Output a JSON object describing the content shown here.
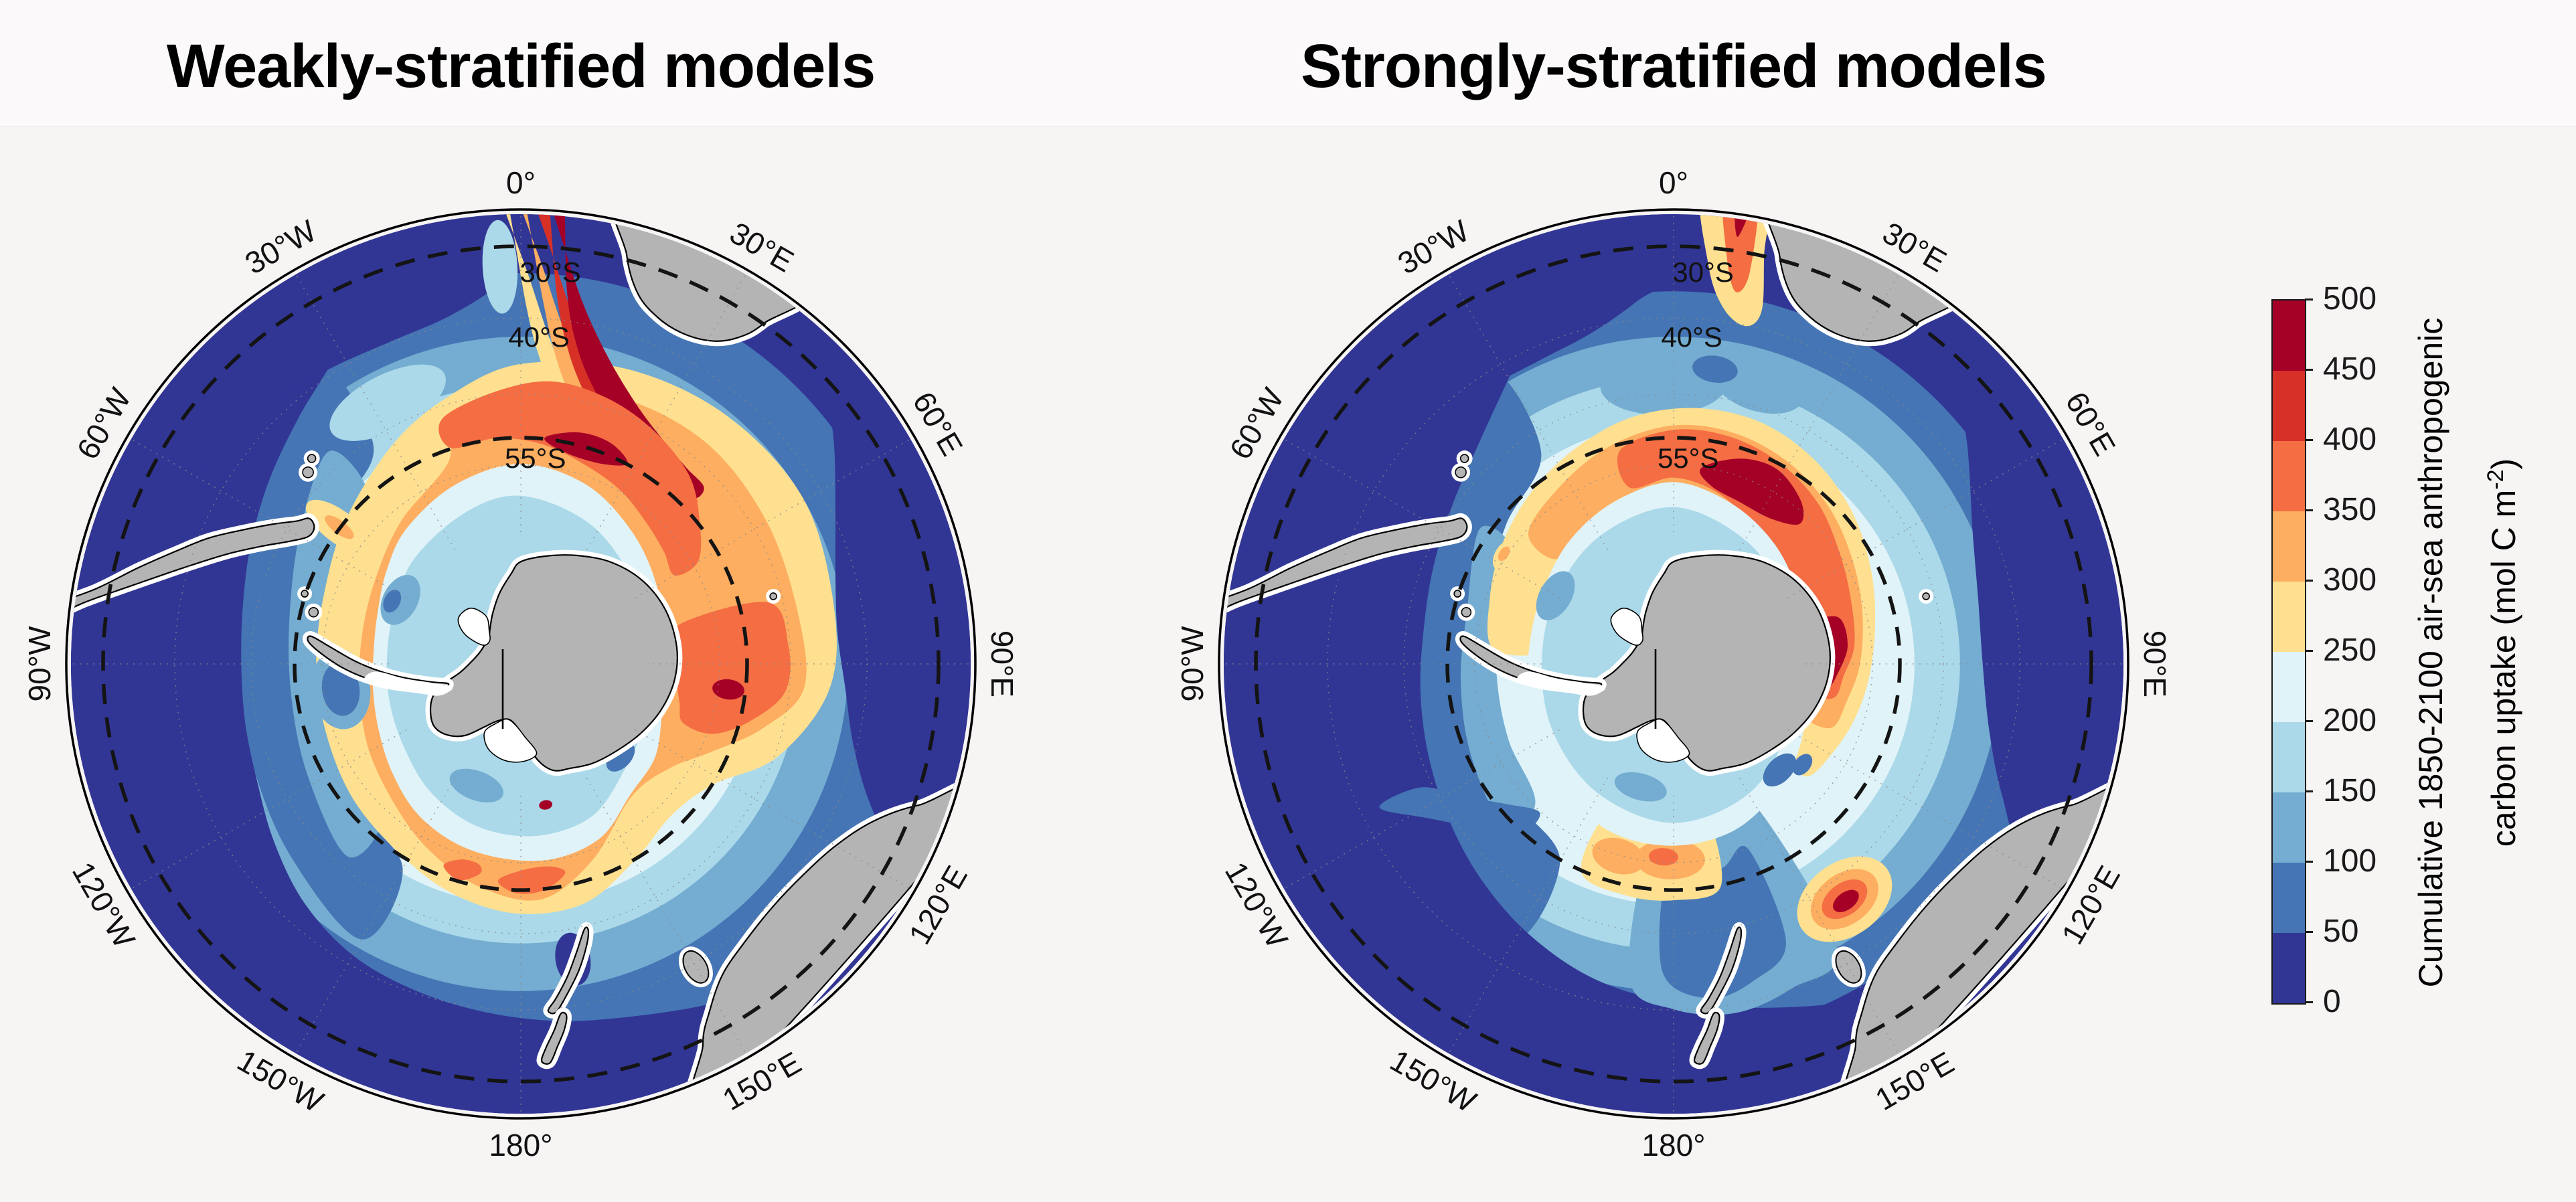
{
  "figure": {
    "background": "#f7f4f4",
    "panels": [
      {
        "title": "Weakly-stratified models"
      },
      {
        "title": "Strongly-stratified models"
      }
    ]
  },
  "map": {
    "longitude_labels": [
      {
        "text": "0°",
        "deg": 0
      },
      {
        "text": "30°E",
        "deg": 30
      },
      {
        "text": "60°E",
        "deg": 60
      },
      {
        "text": "90°E",
        "deg": 90
      },
      {
        "text": "120°E",
        "deg": 120
      },
      {
        "text": "150°E",
        "deg": 150
      },
      {
        "text": "180°",
        "deg": 180
      },
      {
        "text": "150°W",
        "deg": 210
      },
      {
        "text": "120°W",
        "deg": 240
      },
      {
        "text": "90°W",
        "deg": 270
      },
      {
        "text": "60°W",
        "deg": 300
      },
      {
        "text": "30°W",
        "deg": 330
      }
    ],
    "latitude_labels": [
      {
        "text": "30°S",
        "dx_r": 0.065,
        "dy_r": -0.862
      },
      {
        "text": "40°S",
        "dx_r": 0.04,
        "dy_r": -0.718
      },
      {
        "text": "55°S",
        "dx_r": 0.032,
        "dy_r": -0.452
      }
    ]
  },
  "colorbar": {
    "ticks_top_to_bottom": [
      "500",
      "450",
      "400",
      "350",
      "300",
      "250",
      "200",
      "150",
      "100",
      "50",
      "0"
    ],
    "label_line1": "Cumulative 1850-2100 air-sea anthropogenic",
    "label_line2_prefix": "carbon uptake (mol C m",
    "label_line2_sup": "-2",
    "label_line2_suffix": ")"
  },
  "chart_data": {
    "type": "heatmap",
    "title": "Cumulative 1850-2100 air-sea anthropogenic carbon uptake (mol C m-2)",
    "projection": "South polar stereographic view of the Southern Ocean (Antarctica centered, edge ~27-30°S)",
    "units": "mol C m-2",
    "levels": [
      0,
      50,
      100,
      150,
      200,
      250,
      300,
      350,
      400,
      450,
      500
    ],
    "palette": [
      "#313695",
      "#4575b4",
      "#74add1",
      "#abd9e9",
      "#e0f3f8",
      "#fee090",
      "#fdae61",
      "#f46d43",
      "#d73027",
      "#a50026"
    ],
    "land_color": "#b4b4b4",
    "gridlines": {
      "bold_dashed_parallels": [
        "30°S",
        "55°S"
      ],
      "dotted_parallel": "40°S",
      "meridian_spacing_deg": 30
    },
    "panels": [
      {
        "title": "Weakly-stratified models",
        "summary": "Broad band of high cumulative uptake (300-500 mol C m-2) spanning roughly 40-60°S across the Atlantic and Indian sectors; very low uptake (0-50) equatorward of ~35°S, especially in the SE Pacific and at 60-110°E near 30°S; moderate values (150-250) adjacent to Antarctica.",
        "approx_zonal_mean_by_lat_mol_C_m2": {
          "30S": 60,
          "40S": 180,
          "50S": 310,
          "55S": 360,
          "60S": 290,
          "65S": 200
        },
        "notable_maxima": [
          {
            "where": "Agulhas region south of Africa, ~0-40°E / 35-50°S",
            "value": "450-500"
          },
          {
            "where": "~0-40°E near 52-58°S",
            "value": "400-500"
          },
          {
            "where": "~80-105°E, 50-60°S",
            "value": "350-500"
          },
          {
            "where": "south of New Zealand, ~170-190°E near 57°S",
            "value": "350-450"
          }
        ],
        "notable_minima": [
          {
            "where": "subtropical SE Pacific (90-150°W, 30-40°S)",
            "value": "0-50"
          },
          {
            "where": "outer rim 45-115°E near 30-38°S",
            "value": "0-50"
          }
        ]
      },
      {
        "title": "Strongly-stratified models",
        "summary": "High uptake confined to a narrower ring close to Antarctica (~55-65°S); broad low uptake (0-50) over the whole subtropical belt (wide dark-blue outer annulus); moderate pale-blue values (150-250) in mid-latitudes.",
        "approx_zonal_mean_by_lat_mol_C_m2": {
          "30S": 30,
          "40S": 130,
          "50S": 210,
          "55S": 310,
          "60S": 360,
          "65S": 250
        },
        "notable_maxima": [
          {
            "where": "~15-45°E near 55-60°S",
            "value": "450-500"
          },
          {
            "where": "~85-100°E along the Antarctic coast",
            "value": "400-500"
          },
          {
            "where": "isolated hotspot south of Tasmania (~145°E, ~55-60°S)",
            "value": "450-500"
          },
          {
            "where": "thin Agulhas filament at ~10-15°E near the 30°S edge",
            "value": "400-450"
          }
        ],
        "notable_minima": [
          {
            "where": "entire belt equatorward of ~40°S in all sectors",
            "value": "0-50"
          },
          {
            "where": "SE Pacific interior down to ~55°S",
            "value": "50-150"
          }
        ]
      }
    ]
  }
}
